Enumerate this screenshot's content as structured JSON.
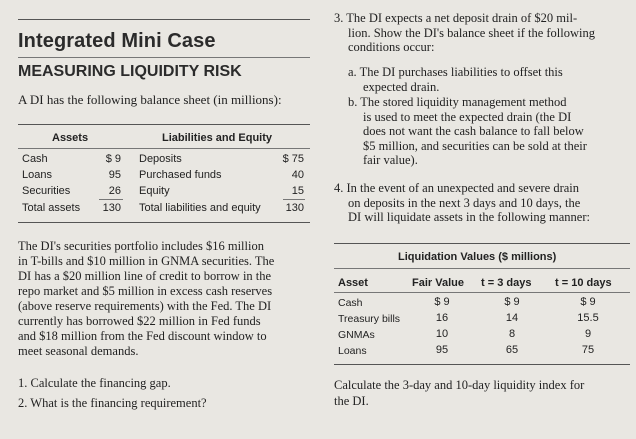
{
  "left": {
    "title": "Integrated Mini Case",
    "subtitle": "MEASURING LIQUIDITY RISK",
    "intro": "A DI has the following balance sheet (in millions):",
    "balance_sheet": {
      "assets_header": "Assets",
      "liabilities_header": "Liabilities and Equity",
      "rows": [
        {
          "asset": "Cash",
          "asset_value": "$ 9",
          "liability": "Deposits",
          "liability_value": "$ 75"
        },
        {
          "asset": "Loans",
          "asset_value": "95",
          "liability": "Purchased funds",
          "liability_value": "40"
        },
        {
          "asset": "Securities",
          "asset_value": "26",
          "liability": "Equity",
          "liability_value": "15"
        },
        {
          "asset": "Total assets",
          "asset_value": "130",
          "liability": "Total liabilities and equity",
          "liability_value": "130"
        }
      ]
    },
    "paragraph_lines": [
      "The DI's securities portfolio includes $16 million",
      "in T-bills and $10 million in GNMA securities. The",
      "DI has a $20 million line of credit to borrow in the",
      "repo market and $5 million in excess cash reserves",
      "(above reserve requirements) with the Fed. The DI",
      "currently has borrowed $22 million in Fed funds",
      "and $18 million from the Fed discount window to",
      "meet seasonal demands."
    ],
    "questions": [
      "1. Calculate the financing gap.",
      "2. What is the financing requirement?"
    ]
  },
  "right": {
    "q3_lines": [
      "3. The DI expects a net deposit drain of $20 mil-",
      "lion. Show the DI's balance sheet if the following",
      "conditions occur:"
    ],
    "q3a_lines": [
      "a. The DI purchases liabilities to offset this",
      "expected drain."
    ],
    "q3b_lines": [
      "b. The stored liquidity management method",
      "is used to meet the expected drain (the DI",
      "does not want the cash balance to fall below",
      "$5 million, and securities can be sold at their",
      "fair value)."
    ],
    "q4_lines": [
      "4. In the event of an unexpected and severe drain",
      "on deposits in the next 3 days and 10 days, the",
      "DI will liquidate assets in the following manner:"
    ],
    "liquidation_table": {
      "title": "Liquidation Values ($ millions)",
      "headers": [
        "Asset",
        "Fair Value",
        "t = 3 days",
        "t = 10 days"
      ],
      "rows": [
        [
          "Cash",
          "$ 9",
          "$ 9",
          "$ 9"
        ],
        [
          "Treasury bills",
          "16",
          "14",
          "15.5"
        ],
        [
          "GNMAs",
          "10",
          "8",
          "9"
        ],
        [
          "Loans",
          "95",
          "65",
          "75"
        ]
      ]
    },
    "closing_lines": [
      "Calculate the 3-day and 10-day liquidity index for",
      "the DI."
    ]
  }
}
